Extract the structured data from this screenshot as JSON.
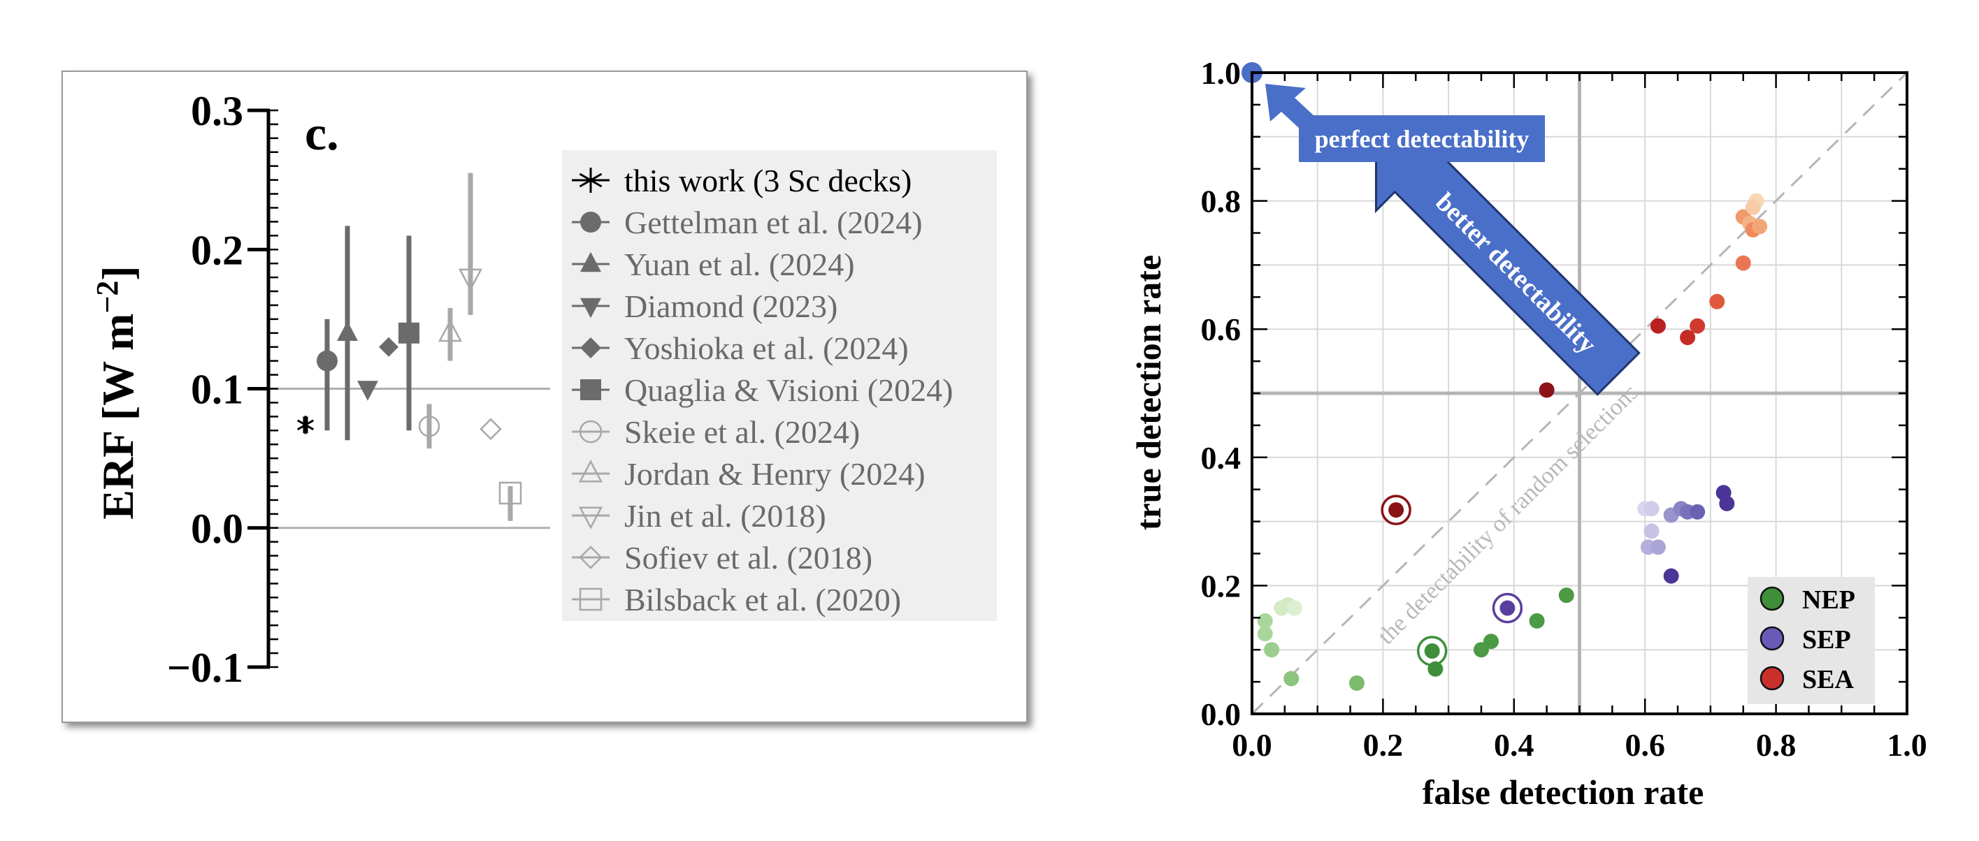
{
  "chart_data": [
    {
      "type": "scatter",
      "panel_label": "c.",
      "ylabel_main": "ERF [W m",
      "ylabel_sup": "−2",
      "ylabel_end": "]",
      "ylim": [
        -0.1,
        0.3
      ],
      "yticks": [
        {
          "v": 0.3,
          "label": "0.3"
        },
        {
          "v": 0.2,
          "label": "0.2"
        },
        {
          "v": 0.1,
          "label": "0.1"
        },
        {
          "v": 0.0,
          "label": "0.0"
        },
        {
          "v": -0.1,
          "label": "−0.1"
        }
      ],
      "reference_lines": [
        0.1,
        0.0
      ],
      "series": [
        {
          "name": "this work (3 Sc decks)",
          "marker": "asterisk",
          "color": "#000000",
          "value": 0.074,
          "low": 0.068,
          "high": 0.08
        },
        {
          "name": "Gettelman et al. (2024)",
          "marker": "circle-filled",
          "color": "#6b6b6b",
          "value": 0.12,
          "low": 0.07,
          "high": 0.15
        },
        {
          "name": "Yuan et al. (2024)",
          "marker": "triangle-up-filled",
          "color": "#6b6b6b",
          "value": 0.14,
          "low": 0.063,
          "high": 0.217
        },
        {
          "name": "Diamond (2023)",
          "marker": "triangle-down-filled",
          "color": "#6b6b6b",
          "value": 0.1,
          "low": null,
          "high": null
        },
        {
          "name": "Yoshioka et al. (2024)",
          "marker": "diamond-filled",
          "color": "#6b6b6b",
          "value": 0.13,
          "low": null,
          "high": null
        },
        {
          "name": "Quaglia & Visioni (2024)",
          "marker": "square-filled",
          "color": "#6b6b6b",
          "value": 0.14,
          "low": 0.07,
          "high": 0.21
        },
        {
          "name": "Skeie et al. (2024)",
          "marker": "circle-open",
          "color": "#a8a8a8",
          "value": 0.073,
          "low": 0.057,
          "high": 0.089
        },
        {
          "name": "Jordan & Henry (2024)",
          "marker": "triangle-up-open",
          "color": "#a8a8a8",
          "value": 0.14,
          "low": 0.12,
          "high": 0.158
        },
        {
          "name": "Jin et al. (2018)",
          "marker": "triangle-down-open",
          "color": "#a8a8a8",
          "value": 0.18,
          "low": 0.153,
          "high": 0.255
        },
        {
          "name": "Sofiev et al. (2018)",
          "marker": "diamond-open",
          "color": "#a8a8a8",
          "value": 0.071,
          "low": null,
          "high": null
        },
        {
          "name": "Bilsback et al. (2020)",
          "marker": "square-open",
          "color": "#a8a8a8",
          "value": 0.025,
          "low": 0.005,
          "high": 0.03
        }
      ]
    },
    {
      "type": "scatter",
      "xlabel": "false detection rate",
      "ylabel": "true detection rate",
      "xlim": [
        0,
        1
      ],
      "ylim": [
        0,
        1
      ],
      "xticks": [
        "0.0",
        "0.2",
        "0.4",
        "0.6",
        "0.8",
        "1.0"
      ],
      "yticks": [
        "0.0",
        "0.2",
        "0.4",
        "0.6",
        "0.8",
        "1.0"
      ],
      "grid": true,
      "reference_lines": {
        "x": 0.5,
        "y": 0.5,
        "diagonal": true
      },
      "annotations": {
        "perfect": "perfect detectability",
        "better": "better detectability",
        "diagonal": "the detectability of random selections"
      },
      "perfect_point": {
        "x": 0.0,
        "y": 1.0,
        "color": "#4a6fc8"
      },
      "legend": {
        "position": "bottom-right",
        "entries": [
          {
            "name": "NEP",
            "color": "#3f8f3a"
          },
          {
            "name": "SEP",
            "color": "#6a5ab8"
          },
          {
            "name": "SEA",
            "color": "#c9302c"
          }
        ]
      },
      "series": [
        {
          "name": "NEP",
          "points": [
            {
              "x": 0.02,
              "y": 0.145,
              "color": "#a9d69a"
            },
            {
              "x": 0.02,
              "y": 0.125,
              "color": "#a9d69a"
            },
            {
              "x": 0.03,
              "y": 0.1,
              "color": "#9ccd8c"
            },
            {
              "x": 0.06,
              "y": 0.055,
              "color": "#8ec47d"
            },
            {
              "x": 0.045,
              "y": 0.165,
              "color": "#d2ebc5"
            },
            {
              "x": 0.055,
              "y": 0.17,
              "color": "#d2ebc5"
            },
            {
              "x": 0.065,
              "y": 0.165,
              "color": "#dcefd2"
            },
            {
              "x": 0.16,
              "y": 0.048,
              "color": "#7cba6c"
            },
            {
              "x": 0.275,
              "y": 0.098,
              "color": "#3f8f3a",
              "ring": true
            },
            {
              "x": 0.28,
              "y": 0.07,
              "color": "#3f8f3a"
            },
            {
              "x": 0.35,
              "y": 0.1,
              "color": "#4c9a44"
            },
            {
              "x": 0.365,
              "y": 0.113,
              "color": "#4c9a44"
            },
            {
              "x": 0.435,
              "y": 0.145,
              "color": "#4c9a44"
            },
            {
              "x": 0.48,
              "y": 0.185,
              "color": "#4c9a44"
            }
          ]
        },
        {
          "name": "SEP",
          "points": [
            {
              "x": 0.39,
              "y": 0.165,
              "color": "#5b3f9e",
              "ring": true
            },
            {
              "x": 0.6,
              "y": 0.32,
              "color": "#d8d6ef"
            },
            {
              "x": 0.61,
              "y": 0.32,
              "color": "#d0cdea"
            },
            {
              "x": 0.61,
              "y": 0.285,
              "color": "#c6c3e5"
            },
            {
              "x": 0.605,
              "y": 0.26,
              "color": "#b4b0dc"
            },
            {
              "x": 0.62,
              "y": 0.26,
              "color": "#aaa5d6"
            },
            {
              "x": 0.64,
              "y": 0.31,
              "color": "#9a94cd"
            },
            {
              "x": 0.655,
              "y": 0.32,
              "color": "#8a84c4"
            },
            {
              "x": 0.665,
              "y": 0.315,
              "color": "#7a73bb"
            },
            {
              "x": 0.68,
              "y": 0.315,
              "color": "#6a62b1"
            },
            {
              "x": 0.64,
              "y": 0.215,
              "color": "#4b3596"
            },
            {
              "x": 0.72,
              "y": 0.345,
              "color": "#4b3596"
            },
            {
              "x": 0.725,
              "y": 0.328,
              "color": "#4b3596"
            }
          ]
        },
        {
          "name": "SEA",
          "points": [
            {
              "x": 0.22,
              "y": 0.318,
              "color": "#8b1216",
              "ring": true
            },
            {
              "x": 0.45,
              "y": 0.505,
              "color": "#8b1216"
            },
            {
              "x": 0.62,
              "y": 0.605,
              "color": "#b8201f"
            },
            {
              "x": 0.665,
              "y": 0.587,
              "color": "#c52c26"
            },
            {
              "x": 0.68,
              "y": 0.605,
              "color": "#cf3a2e"
            },
            {
              "x": 0.71,
              "y": 0.643,
              "color": "#e0593f"
            },
            {
              "x": 0.75,
              "y": 0.703,
              "color": "#ea7555"
            },
            {
              "x": 0.75,
              "y": 0.775,
              "color": "#f09a6c"
            },
            {
              "x": 0.76,
              "y": 0.765,
              "color": "#f3b286"
            },
            {
              "x": 0.765,
              "y": 0.755,
              "color": "#f08a5e"
            },
            {
              "x": 0.77,
              "y": 0.8,
              "color": "#f8d6b4"
            },
            {
              "x": 0.765,
              "y": 0.79,
              "color": "#f6cba6"
            },
            {
              "x": 0.775,
              "y": 0.76,
              "color": "#f2a676"
            }
          ]
        }
      ]
    }
  ]
}
